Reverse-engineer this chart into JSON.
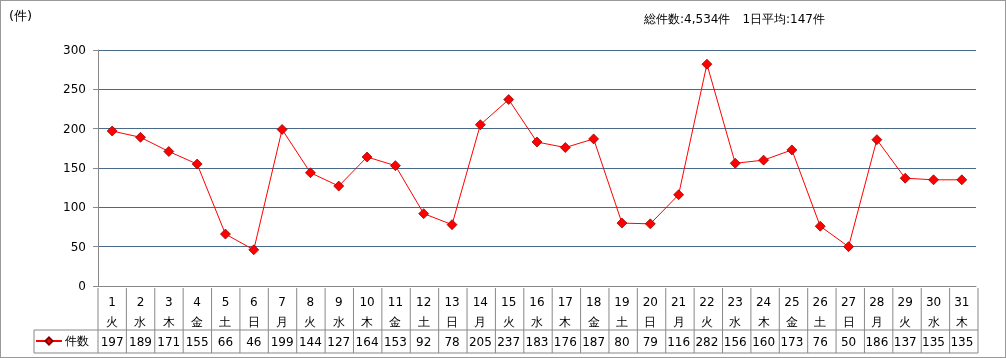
{
  "chart_data": {
    "type": "line",
    "ylabel": "(件)",
    "annotations": [
      "総件数:4,534件　1日平均:147件"
    ],
    "categories": [
      "1\n火",
      "2\n水",
      "3\n木",
      "4\n金",
      "5\n土",
      "6\n日",
      "7\n月",
      "8\n火",
      "9\n水",
      "10\n木",
      "11\n金",
      "12\n土",
      "13\n日",
      "14\n月",
      "15\n火",
      "16\n水",
      "17\n木",
      "18\n金",
      "19\n土",
      "20\n日",
      "21\n月",
      "22\n火",
      "23\n水",
      "24\n木",
      "25\n金",
      "26\n土",
      "27\n日",
      "28\n月",
      "29\n火",
      "30\n水",
      "31\n木"
    ],
    "series": [
      {
        "name": "件数",
        "color": "#ff0000",
        "values": [
          197,
          189,
          171,
          155,
          66,
          46,
          199,
          144,
          127,
          164,
          153,
          92,
          78,
          205,
          237,
          183,
          176,
          187,
          80,
          79,
          116,
          282,
          156,
          160,
          173,
          76,
          50,
          186,
          137,
          135,
          135
        ]
      }
    ],
    "ylim": [
      0,
      300
    ],
    "yticks": [
      0,
      50,
      100,
      150,
      200,
      250,
      300
    ],
    "grid": true,
    "legend": "bottom left",
    "marker": "diamond",
    "data_labels": true
  }
}
